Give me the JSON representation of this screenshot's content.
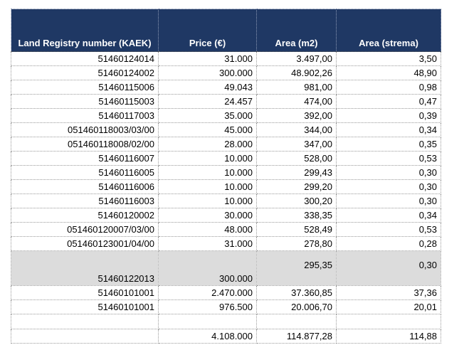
{
  "table": {
    "columns": [
      {
        "label": "Land Registry number (KAEK)"
      },
      {
        "label": "Price (€)"
      },
      {
        "label": "Area (m2)"
      },
      {
        "label": "Area (strema)"
      }
    ],
    "rows": [
      {
        "kaek": "51460124014",
        "price": "31.000",
        "area_m2": "3.497,00",
        "area_strema": "3,50",
        "variant": ""
      },
      {
        "kaek": "51460124002",
        "price": "300.000",
        "area_m2": "48.902,26",
        "area_strema": "48,90",
        "variant": ""
      },
      {
        "kaek": "51460115006",
        "price": "49.043",
        "area_m2": "981,00",
        "area_strema": "0,98",
        "variant": ""
      },
      {
        "kaek": "51460115003",
        "price": "24.457",
        "area_m2": "474,00",
        "area_strema": "0,47",
        "variant": ""
      },
      {
        "kaek": "51460117003",
        "price": "35.000",
        "area_m2": "392,00",
        "area_strema": "0,39",
        "variant": ""
      },
      {
        "kaek": "051460118003/03/00",
        "price": "45.000",
        "area_m2": "344,00",
        "area_strema": "0,34",
        "variant": ""
      },
      {
        "kaek": "051460118008/02/00",
        "price": "28.000",
        "area_m2": "347,00",
        "area_strema": "0,35",
        "variant": ""
      },
      {
        "kaek": "51460116007",
        "price": "10.000",
        "area_m2": "528,00",
        "area_strema": "0,53",
        "variant": ""
      },
      {
        "kaek": "51460116005",
        "price": "10.000",
        "area_m2": "299,43",
        "area_strema": "0,30",
        "variant": ""
      },
      {
        "kaek": "51460116006",
        "price": "10.000",
        "area_m2": "299,20",
        "area_strema": "0,30",
        "variant": ""
      },
      {
        "kaek": "51460116003",
        "price": "10.000",
        "area_m2": "300,20",
        "area_strema": "0,30",
        "variant": ""
      },
      {
        "kaek": "51460120002",
        "price": "30.000",
        "area_m2": "338,35",
        "area_strema": "0,34",
        "variant": ""
      },
      {
        "kaek": "051460120007/03/00",
        "price": "48.000",
        "area_m2": "528,49",
        "area_strema": "0,53",
        "variant": ""
      },
      {
        "kaek": "051460123001/04/00",
        "price": "31.000",
        "area_m2": "278,80",
        "area_strema": "0,28",
        "variant": ""
      },
      {
        "kaek": "51460122013",
        "price": "300.000",
        "area_m2": "295,35",
        "area_strema": "0,30",
        "variant": "highlight"
      },
      {
        "kaek": "51460101001",
        "price": "2.470.000",
        "area_m2": "37.360,85",
        "area_strema": "37,36",
        "variant": ""
      },
      {
        "kaek": "51460101001",
        "price": "976.500",
        "area_m2": "20.006,70",
        "area_strema": "20,01",
        "variant": ""
      },
      {
        "kaek": "",
        "price": "",
        "area_m2": "",
        "area_strema": "",
        "variant": "empty"
      },
      {
        "kaek": "",
        "price": "4.108.000",
        "area_m2": "114.877,28",
        "area_strema": "114,88",
        "variant": "total"
      }
    ],
    "colors": {
      "header_bg": "#1f3864",
      "header_text": "#ffffff",
      "highlight_row_bg": "#dcdcdc",
      "border": "#9a9a9a",
      "text": "#000000"
    }
  }
}
